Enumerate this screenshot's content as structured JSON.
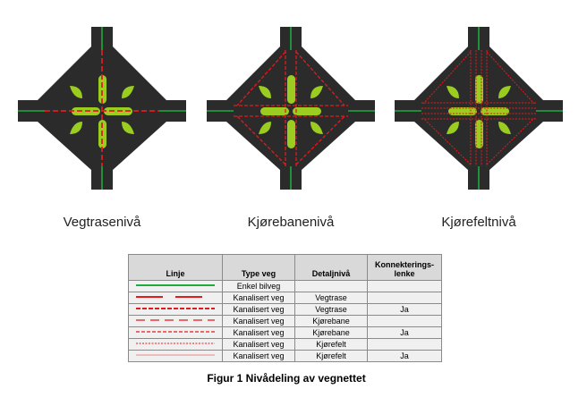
{
  "captions": [
    "Vegtrasenivå",
    "Kjørebanenivå",
    "Kjørefeltnivå"
  ],
  "legend": {
    "headers": [
      "Linje",
      "Type veg",
      "Detaljnivå",
      "Konnekterings-\nlenke"
    ],
    "rows": [
      {
        "line_style": "green-solid",
        "type": "Enkel bilveg",
        "detail": "",
        "connector": ""
      },
      {
        "line_style": "red-long-dash-thick",
        "type": "Kanalisert veg",
        "detail": "Vegtrase",
        "connector": ""
      },
      {
        "line_style": "red-dash-thick",
        "type": "Kanalisert veg",
        "detail": "Vegtrase",
        "connector": "Ja"
      },
      {
        "line_style": "red-long-dash",
        "type": "Kanalisert veg",
        "detail": "Kjørebane",
        "connector": ""
      },
      {
        "line_style": "red-dash",
        "type": "Kanalisert veg",
        "detail": "Kjørebane",
        "connector": "Ja"
      },
      {
        "line_style": "red-dot-thin",
        "type": "Kanalisert veg",
        "detail": "Kjørefelt",
        "connector": ""
      },
      {
        "line_style": "red-solid-thin",
        "type": "Kanalisert veg",
        "detail": "Kjørefelt",
        "connector": "Ja"
      }
    ]
  },
  "figure_caption": "Figur 1 Nivådeling av vegnettet",
  "colors": {
    "road": "#2b2b2b",
    "island": "#9acd1f",
    "green_line": "#1faa3c",
    "red_line": "#e31b1b"
  }
}
